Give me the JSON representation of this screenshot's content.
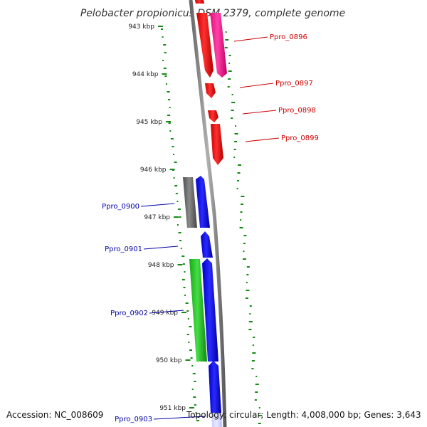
{
  "title": "Pelobacter propionicus DSM 2379, complete genome",
  "accession": "Accession: NC_008609",
  "summary": "Topology: circular; Length: 4,008,000 bp; Genes: 3,643",
  "colors": {
    "backbone": "#888888",
    "red": "#ff0000",
    "magenta": "#ff1493",
    "blue": "#0000ff",
    "green": "#22cc22",
    "gray": "#666666",
    "gc_dots": "#138a13",
    "label_red": "#cc0000",
    "label_blue": "#0000aa"
  },
  "ticks": [
    {
      "label": "943 kbp",
      "kbp": 943
    },
    {
      "label": "944 kbp",
      "kbp": 944
    },
    {
      "label": "945 kbp",
      "kbp": 945
    },
    {
      "label": "946 kbp",
      "kbp": 946
    },
    {
      "label": "947 kbp",
      "kbp": 947
    },
    {
      "label": "948 kbp",
      "kbp": 948
    },
    {
      "label": "949 kbp",
      "kbp": 949
    },
    {
      "label": "950 kbp",
      "kbp": 950
    },
    {
      "label": "951 kbp",
      "kbp": 951
    }
  ],
  "genes": [
    {
      "label": "Ppro_0896",
      "color": "red"
    },
    {
      "label": "Ppro_0897",
      "color": "red"
    },
    {
      "label": "Ppro_0898",
      "color": "red"
    },
    {
      "label": "Ppro_0899",
      "color": "red"
    },
    {
      "label": "Ppro_0900",
      "color": "blue"
    },
    {
      "label": "Ppro_0901",
      "color": "blue"
    },
    {
      "label": "Ppro_0902",
      "color": "blue"
    },
    {
      "label": "Ppro_0903",
      "color": "blue"
    }
  ]
}
